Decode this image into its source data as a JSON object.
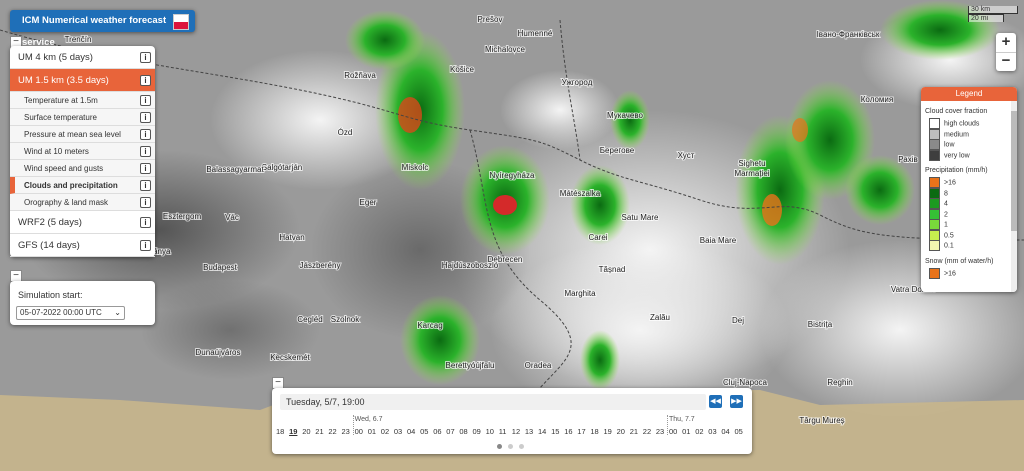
{
  "header": {
    "title": "ICM Numerical weather forecast service"
  },
  "scale": {
    "km": "30 km",
    "mi": "20 mi"
  },
  "zoom": {
    "in": "+",
    "out": "−"
  },
  "collapse": "−",
  "info_icon": "i",
  "models": [
    {
      "label": "UM 4 km (5 days)"
    },
    {
      "label": "UM 1.5 km (3.5 days)",
      "active": true,
      "layers": [
        {
          "label": "Temperature at 1.5m"
        },
        {
          "label": "Surface temperature"
        },
        {
          "label": "Pressure at mean sea level"
        },
        {
          "label": "Wind at 10 meters"
        },
        {
          "label": "Wind speed and gusts"
        },
        {
          "label": "Clouds and precipitation",
          "active": true
        },
        {
          "label": "Orography & land mask"
        }
      ]
    },
    {
      "label": "WRF2 (5 days)"
    },
    {
      "label": "GFS (14 days)"
    }
  ],
  "simulation": {
    "label": "Simulation start:",
    "value": "05-07-2022 00:00 UTC"
  },
  "timeline": {
    "current": "Tuesday, 5/7, 19:00",
    "selected": 1,
    "days": [
      {
        "label": "Wed, 6.7",
        "at": 6
      },
      {
        "label": "Thu, 7.7",
        "at": 30
      }
    ],
    "hours": [
      "18",
      "19",
      "20",
      "21",
      "22",
      "23",
      "00",
      "01",
      "02",
      "03",
      "04",
      "05",
      "06",
      "07",
      "08",
      "09",
      "10",
      "11",
      "12",
      "13",
      "14",
      "15",
      "16",
      "17",
      "18",
      "19",
      "20",
      "21",
      "22",
      "23",
      "00",
      "01",
      "02",
      "03",
      "04",
      "05"
    ]
  },
  "legend": {
    "title": "Legend",
    "cloud_title": "Cloud cover fraction",
    "cloud": [
      {
        "label": "high clouds",
        "color": "#ffffff"
      },
      {
        "label": "medium",
        "color": "#bdbdbd"
      },
      {
        "label": "low",
        "color": "#8a8a8a"
      },
      {
        "label": "very low",
        "color": "#3e3e3e"
      }
    ],
    "precip_title": "Precipitation (mm/h)",
    "precip": [
      {
        "label": ">16",
        "color": "#e8731a"
      },
      {
        "label": "8",
        "color": "#0b6b12"
      },
      {
        "label": "4",
        "color": "#1c9a20"
      },
      {
        "label": "2",
        "color": "#35c035"
      },
      {
        "label": "1",
        "color": "#79d93a"
      },
      {
        "label": "0.5",
        "color": "#c6ef4e"
      },
      {
        "label": "0.1",
        "color": "#f3f6b0"
      }
    ],
    "snow_title": "Snow (mm of water/h)",
    "snow": [
      {
        "label": ">16",
        "color": "#e8731a"
      }
    ]
  },
  "places": [
    "Trenčín",
    "Prešov",
    "Košice",
    "Humenné",
    "Michalovce",
    "Rožňava",
    "Ózd",
    "Miskolc",
    "Eger",
    "Salgótarján",
    "Balassagyarmat",
    "Vác",
    "Esztergom",
    "Tatabánya",
    "Budapest",
    "Hatvan",
    "Jászberény",
    "Cegléd",
    "Szolnok",
    "Kecskemét",
    "Dunaújváros",
    "Karcag",
    "Debrecen",
    "Hajdúszoboszló",
    "Berettyóújfalu",
    "Nyíregyháza",
    "Mátészalka",
    "Carei",
    "Tășnad",
    "Marghita",
    "Oradea",
    "Satu Mare",
    "Baia Mare",
    "Zalău",
    "Dej",
    "Cluj-Napoca",
    "Bistrița",
    "Reghin",
    "Târgu Mureș",
    "Vatra Dornei",
    "Ужгород",
    "Мукачево",
    "Берегове",
    "Хуст",
    "Рахів",
    "Коломия",
    "Івано-Франківськ",
    "Sighetu",
    "Marmației"
  ]
}
